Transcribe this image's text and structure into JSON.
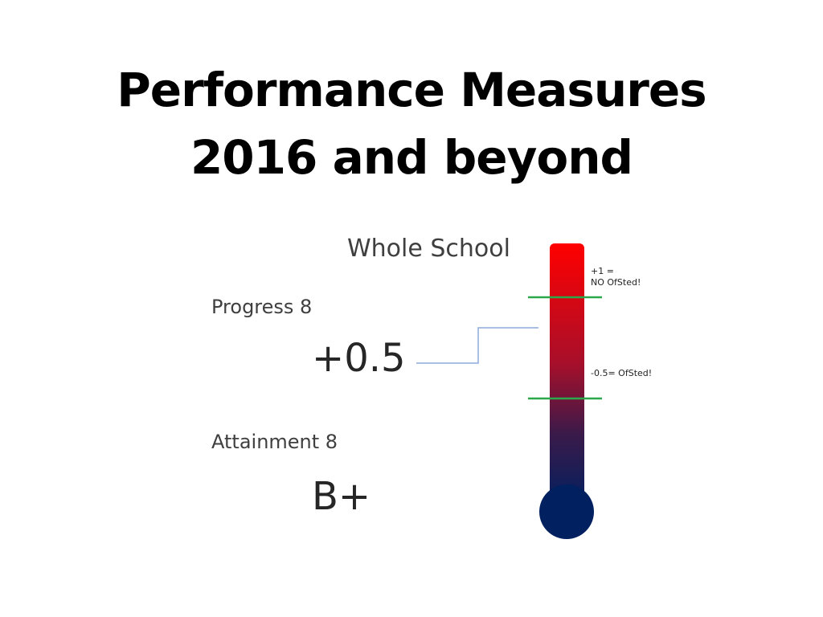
{
  "title": {
    "line1": "Performance Measures",
    "line2": "2016 and beyond"
  },
  "scope_label": "Whole School",
  "progress": {
    "label": "Progress 8",
    "value": "+0.5"
  },
  "attainment": {
    "label": "Attainment 8",
    "value": "B+"
  },
  "thermometer": {
    "top_color": "#ff0000",
    "bottom_color": "#002060",
    "marker_color": "#2aa84a",
    "pointer_color": "#8eaadb",
    "marks": [
      {
        "line1": "+1 =",
        "line2": "NO OfSted!"
      },
      {
        "line1": "-0.5= OfSted!",
        "line2": ""
      }
    ]
  }
}
